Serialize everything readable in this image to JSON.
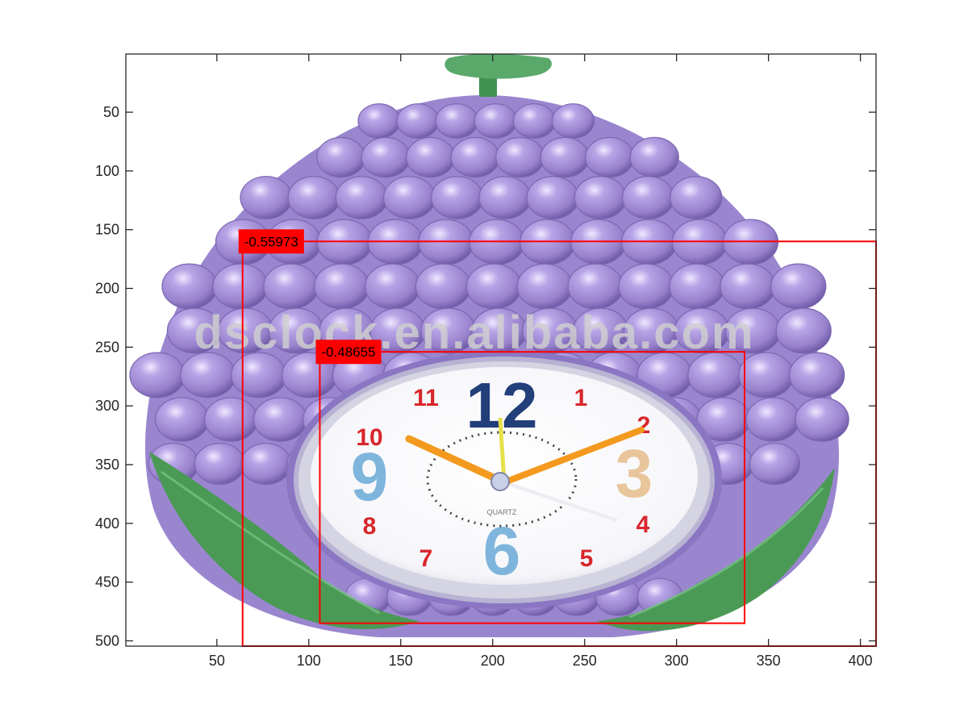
{
  "chart_data": {
    "type": "image-detection-plot",
    "xlim": [
      0.5,
      408.5
    ],
    "ylim": [
      0.5,
      504.5
    ],
    "y_axis_direction": "reversed",
    "x_ticks": [
      50,
      100,
      150,
      200,
      250,
      300,
      350,
      400
    ],
    "y_ticks": [
      50,
      100,
      150,
      200,
      250,
      300,
      350,
      400,
      450,
      500
    ],
    "x_tick_labels": [
      "50",
      "100",
      "150",
      "200",
      "250",
      "300",
      "350",
      "400"
    ],
    "y_tick_labels": [
      "50",
      "100",
      "150",
      "200",
      "250",
      "300",
      "350",
      "400",
      "450",
      "500"
    ],
    "box_color": "#ff0000",
    "detections": [
      {
        "label": "-0.55973",
        "x1": 64,
        "y1": 160,
        "x2": 408.5,
        "y2": 504.5
      },
      {
        "label": "-0.48655",
        "x1": 106,
        "y1": 254,
        "x2": 337,
        "y2": 485
      }
    ],
    "image": {
      "watermark": "dsclock.en.alibaba.com",
      "clock_numerals": [
        "12",
        "1",
        "2",
        "3",
        "4",
        "5",
        "6",
        "7",
        "8",
        "9",
        "10",
        "11"
      ],
      "dial_text": "QUARTZ",
      "colors": {
        "grape": "#a894d6",
        "grape_dark": "#7d67b3",
        "leaf": "#4a9a55",
        "dial": "#ffffff",
        "numeral_red": "#d8262c",
        "numeral_blue": "#223f7a",
        "numeral_light_blue": "#7fb5dc",
        "numeral_peach": "#e8c59a",
        "hand_orange": "#f39a1e"
      }
    }
  }
}
